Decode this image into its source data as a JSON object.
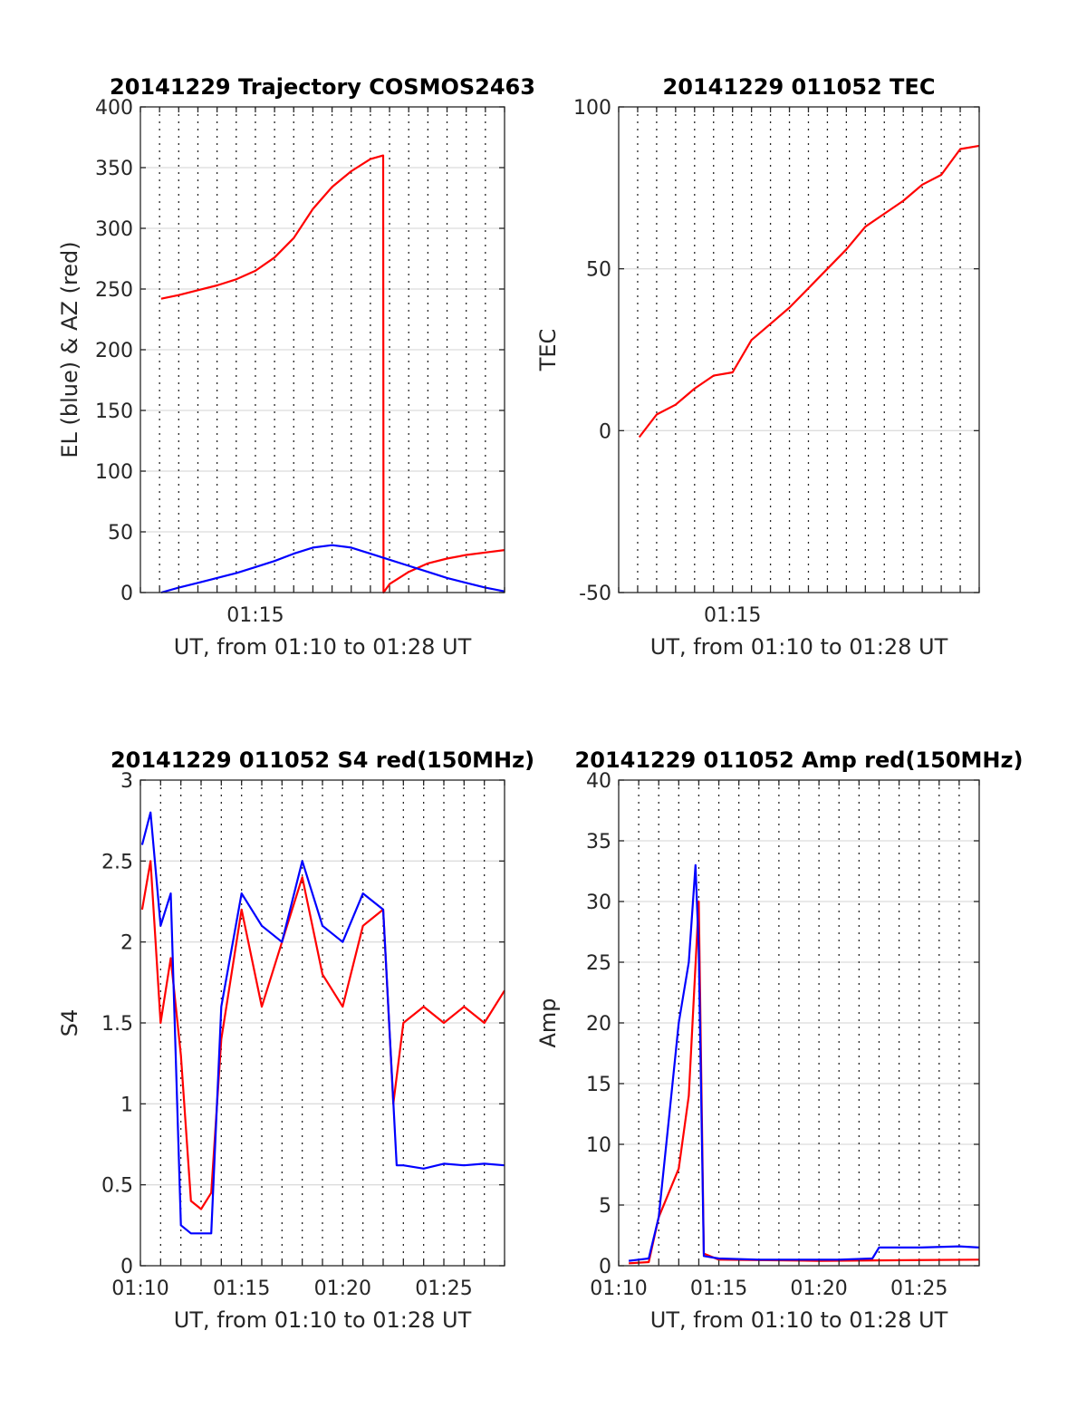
{
  "chart_data": [
    {
      "type": "line",
      "title": "20141229 Trajectory COSMOS2463",
      "xlabel": "UT, from 01:10 to 01:28 UT",
      "ylabel": "EL (blue) & AZ (red)",
      "xlim": [
        "01:09",
        "01:28"
      ],
      "ylim": [
        0,
        400
      ],
      "yticks": [
        0,
        50,
        100,
        150,
        200,
        250,
        300,
        350,
        400
      ],
      "xticks": [
        "01:15"
      ],
      "grid": true,
      "series": [
        {
          "color": "#ff0000",
          "x": [
            "01:10:05",
            "01:11",
            "01:12",
            "01:13",
            "01:14",
            "01:15",
            "01:16",
            "01:17",
            "01:18",
            "01:19",
            "01:20",
            "01:21",
            "01:21:40",
            "01:21:41",
            "01:22",
            "01:23",
            "01:24",
            "01:25",
            "01:26",
            "01:27",
            "01:28"
          ],
          "values": [
            242,
            245,
            249,
            253,
            258,
            265,
            276,
            292,
            316,
            334,
            347,
            357,
            360,
            0,
            7,
            17,
            24,
            28,
            31,
            33,
            35
          ]
        },
        {
          "color": "#0000ff",
          "x": [
            "01:10:05",
            "01:11",
            "01:12",
            "01:13",
            "01:14",
            "01:15",
            "01:16",
            "01:17",
            "01:18",
            "01:19",
            "01:20",
            "01:21",
            "01:22",
            "01:23",
            "01:24",
            "01:25",
            "01:26",
            "01:27",
            "01:28"
          ],
          "values": [
            0,
            4,
            8,
            12,
            16,
            21,
            26,
            32,
            37,
            39,
            37,
            32,
            27,
            22,
            17,
            12,
            8,
            4,
            1
          ]
        }
      ]
    },
    {
      "type": "line",
      "title": "20141229 011052 TEC",
      "xlabel": "UT, from 01:10 to 01:28 UT",
      "ylabel": "TEC",
      "xlim": [
        "01:09",
        "01:28"
      ],
      "ylim": [
        -50,
        100
      ],
      "yticks": [
        -50,
        0,
        50,
        100
      ],
      "xticks": [
        "01:15"
      ],
      "grid": true,
      "series": [
        {
          "color": "#ff0000",
          "x": [
            "01:10:05",
            "01:11",
            "01:12",
            "01:13",
            "01:14",
            "01:15",
            "01:16",
            "01:17",
            "01:18",
            "01:19",
            "01:20",
            "01:21",
            "01:22",
            "01:23",
            "01:24",
            "01:25",
            "01:26",
            "01:27",
            "01:28"
          ],
          "values": [
            -2,
            5,
            8,
            13,
            17,
            18,
            28,
            33,
            38,
            44,
            50,
            56,
            63,
            67,
            71,
            76,
            79,
            87,
            88
          ]
        }
      ]
    },
    {
      "type": "line",
      "title": "20141229 011052 S4 red(150MHz)",
      "xlabel": "UT, from 01:10 to 01:28 UT",
      "ylabel": "S4",
      "xlim": [
        "01:10",
        "01:28"
      ],
      "ylim": [
        0,
        3
      ],
      "yticks": [
        0,
        0.5,
        1,
        1.5,
        2,
        2.5,
        3
      ],
      "xticks": [
        "01:10",
        "01:15",
        "01:20",
        "01:25"
      ],
      "grid": true,
      "series": [
        {
          "color": "#ff0000",
          "x": [
            "01:10:05",
            "01:10:30",
            "01:11",
            "01:11:30",
            "01:12",
            "01:12:30",
            "01:13",
            "01:13:30",
            "01:14",
            "01:15",
            "01:16",
            "01:17",
            "01:18",
            "01:19",
            "01:20",
            "01:21",
            "01:22",
            "01:22:30",
            "01:23",
            "01:24",
            "01:25",
            "01:26",
            "01:27",
            "01:28"
          ],
          "values": [
            2.2,
            2.5,
            1.5,
            1.9,
            1.3,
            0.4,
            0.35,
            0.45,
            1.4,
            2.2,
            1.6,
            2.0,
            2.4,
            1.8,
            1.6,
            2.1,
            2.2,
            1.0,
            1.5,
            1.6,
            1.5,
            1.6,
            1.5,
            1.7
          ]
        },
        {
          "color": "#0000ff",
          "x": [
            "01:10:05",
            "01:10:30",
            "01:11",
            "01:11:30",
            "01:12",
            "01:12:30",
            "01:13",
            "01:13:30",
            "01:14",
            "01:15",
            "01:16",
            "01:17",
            "01:18",
            "01:19",
            "01:20",
            "01:21",
            "01:22",
            "01:22:40",
            "01:23",
            "01:24",
            "01:25",
            "01:26",
            "01:27",
            "01:28"
          ],
          "values": [
            2.6,
            2.8,
            2.1,
            2.3,
            0.25,
            0.2,
            0.2,
            0.2,
            1.6,
            2.3,
            2.1,
            2.0,
            2.5,
            2.1,
            2.0,
            2.3,
            2.2,
            0.62,
            0.62,
            0.6,
            0.63,
            0.62,
            0.63,
            0.62
          ]
        }
      ]
    },
    {
      "type": "line",
      "title": "20141229 011052 Amp red(150MHz)",
      "xlabel": "UT, from 01:10 to 01:28 UT",
      "ylabel": "Amp",
      "xlim": [
        "01:10",
        "01:28"
      ],
      "ylim": [
        0,
        40
      ],
      "yticks": [
        0,
        5,
        10,
        15,
        20,
        25,
        30,
        35,
        40
      ],
      "xticks": [
        "01:10",
        "01:15",
        "01:20",
        "01:25"
      ],
      "grid": true,
      "series": [
        {
          "color": "#ff0000",
          "x": [
            "01:10:30",
            "01:11:30",
            "01:12",
            "01:12:30",
            "01:13",
            "01:13:30",
            "01:14",
            "01:14:15",
            "01:15",
            "01:20",
            "01:28"
          ],
          "values": [
            0.2,
            0.3,
            4,
            6,
            8,
            14,
            30,
            1,
            0.5,
            0.4,
            0.5
          ]
        },
        {
          "color": "#0000ff",
          "x": [
            "01:10:30",
            "01:11",
            "01:11:30",
            "01:12",
            "01:12:30",
            "01:13",
            "01:13:30",
            "01:13:50",
            "01:14",
            "01:14:15",
            "01:15",
            "01:17",
            "01:19",
            "01:21",
            "01:22:40",
            "01:23",
            "01:25",
            "01:27",
            "01:28"
          ],
          "values": [
            0.4,
            0.5,
            0.6,
            4,
            12,
            20,
            25,
            33,
            26,
            0.8,
            0.6,
            0.5,
            0.5,
            0.5,
            0.6,
            1.5,
            1.5,
            1.6,
            1.5
          ]
        }
      ]
    }
  ]
}
